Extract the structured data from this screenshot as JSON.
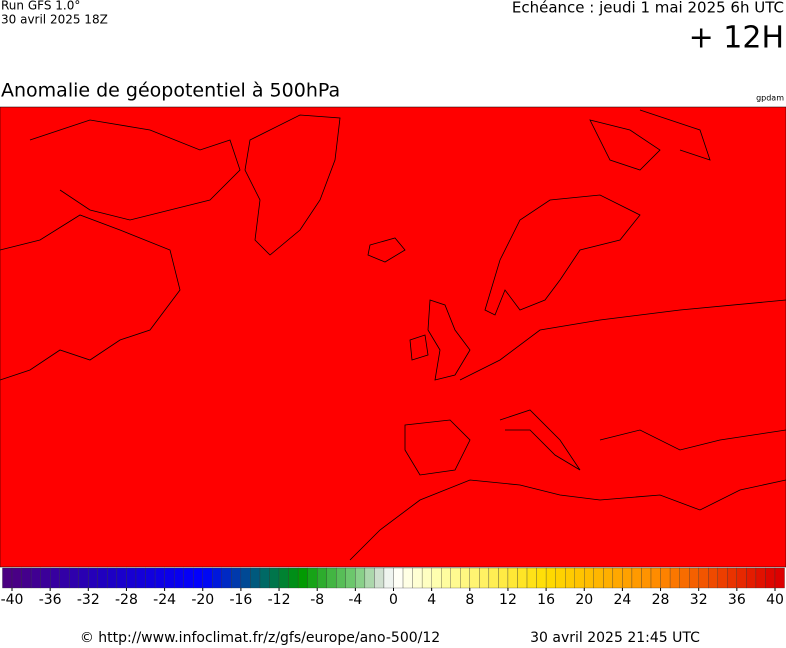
{
  "header": {
    "run": "Run GFS 1.0°",
    "run_date": "30 avril 2025 18Z",
    "valid": "Echéance : jeudi 1 mai 2025 6h UTC",
    "lead": "+ 12H"
  },
  "map": {
    "title": "Anomalie de géopotentiel à 500hPa",
    "unit": "gpdam"
  },
  "colorbar": {
    "ticks": [
      -40,
      -36,
      -32,
      -28,
      -24,
      -20,
      -16,
      -12,
      -8,
      -4,
      0,
      4,
      8,
      12,
      16,
      20,
      24,
      28,
      32,
      36,
      40
    ]
  },
  "footer": {
    "source": "© http://www.infoclimat.fr/z/gfs/europe/ano-500/12",
    "generated": "30 avril 2025 21:45 UTC"
  }
}
